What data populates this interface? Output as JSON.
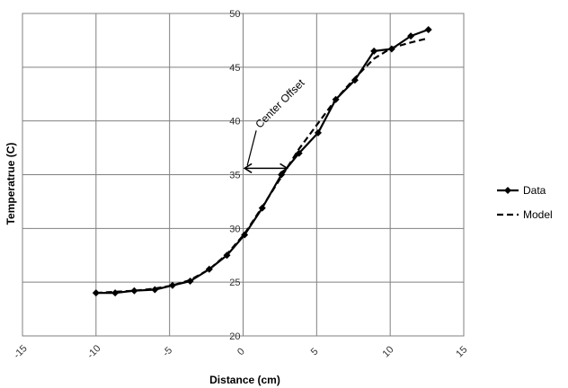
{
  "chart_data": {
    "type": "line",
    "xlabel": "Distance (cm)",
    "ylabel": "Temperatrue (C)",
    "xlim": [
      -15,
      15
    ],
    "ylim": [
      20,
      50
    ],
    "xticks": [
      "-15",
      "-10",
      "-5",
      "0",
      "5",
      "10",
      "15"
    ],
    "yticks": [
      "20",
      "25",
      "30",
      "35",
      "40",
      "45",
      "50"
    ],
    "grid": true,
    "legend_position": "right",
    "series": [
      {
        "name": "Data",
        "style": "solid-diamond",
        "color": "#000000",
        "x": [
          -10.0,
          -8.7,
          -7.4,
          -6.0,
          -4.8,
          -3.6,
          -2.3,
          -1.1,
          0.1,
          1.3,
          2.6,
          3.8,
          5.1,
          6.3,
          7.6,
          8.9,
          10.1,
          11.4,
          12.6
        ],
        "y": [
          24.0,
          24.0,
          24.2,
          24.3,
          24.7,
          25.1,
          26.2,
          27.5,
          29.4,
          31.9,
          35.0,
          37.0,
          38.9,
          42.0,
          43.8,
          46.5,
          46.7,
          47.9,
          48.5
        ]
      },
      {
        "name": "Model",
        "style": "dashed",
        "color": "#000000",
        "x": [
          -10.0,
          -8.7,
          -7.4,
          -6.0,
          -4.8,
          -3.6,
          -2.3,
          -1.1,
          0.1,
          1.3,
          2.6,
          3.8,
          5.1,
          6.3,
          7.6,
          8.9,
          10.1,
          11.4,
          12.6
        ],
        "y": [
          24.0,
          24.1,
          24.2,
          24.4,
          24.7,
          25.2,
          26.2,
          27.6,
          29.5,
          32.0,
          34.8,
          37.4,
          39.8,
          42.0,
          44.0,
          45.8,
          46.8,
          47.3,
          47.7
        ]
      }
    ],
    "annotation": {
      "text": "Center Offset",
      "arrow_from_x": 3.0,
      "arrow_to_x": 0.1,
      "arrow_y": 35.6
    }
  }
}
